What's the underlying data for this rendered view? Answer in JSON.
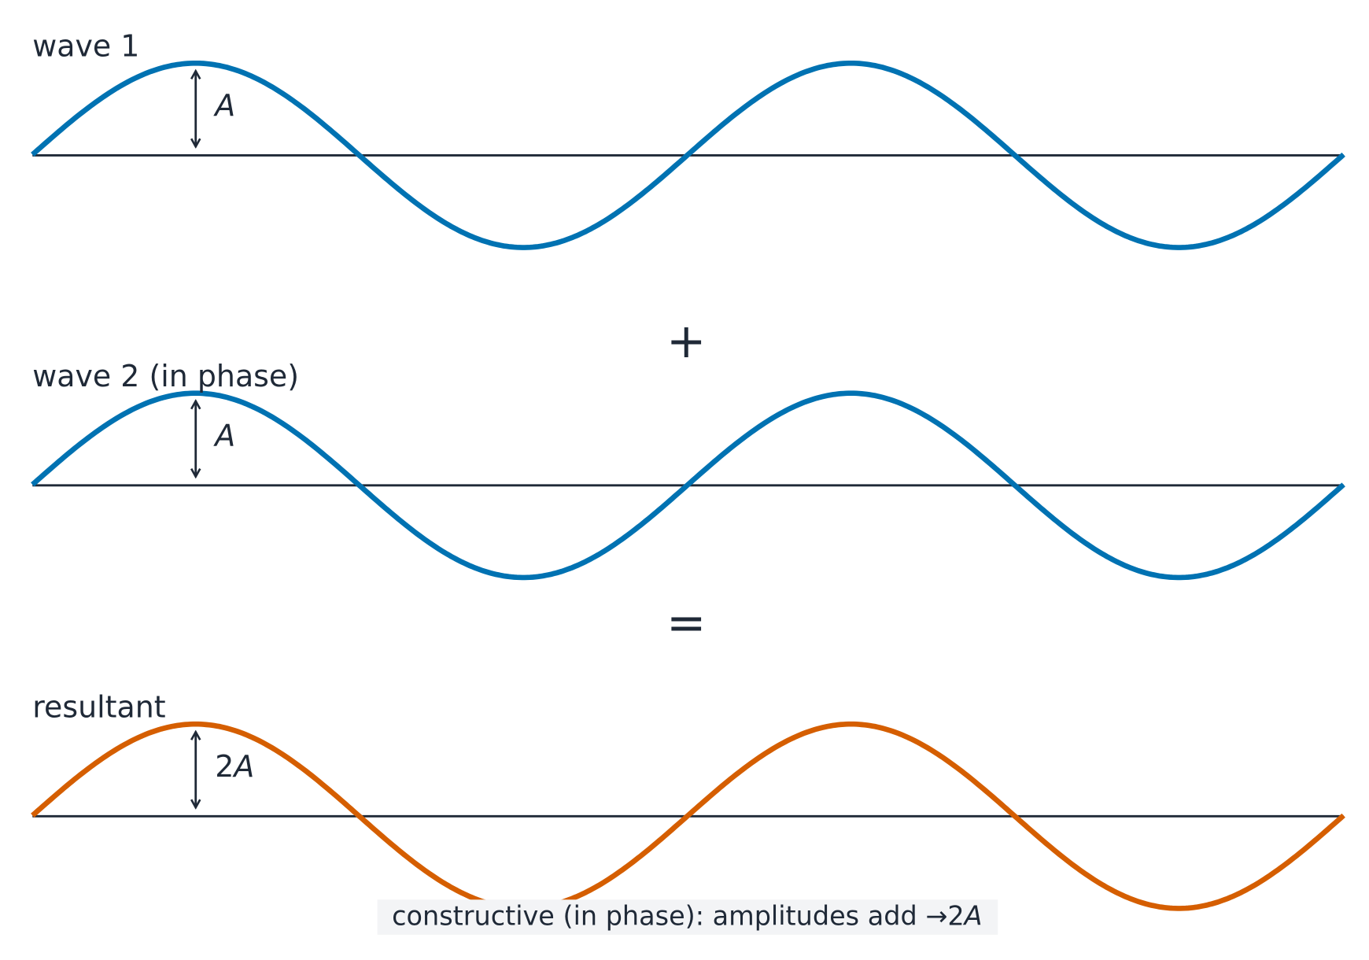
{
  "panels": [
    {
      "label": "wave 1",
      "amplitude": {
        "coefficient": "",
        "symbol": "A"
      }
    },
    {
      "label": "wave 2 (in phase)",
      "amplitude": {
        "coefficient": "",
        "symbol": "A"
      }
    },
    {
      "label": "resultant",
      "amplitude": {
        "coefficient": "2",
        "symbol": "A"
      }
    }
  ],
  "operators": [
    "+",
    "="
  ],
  "caption": {
    "text": "constructive (in phase): amplitudes add →",
    "coefficient": "2",
    "symbol": "A"
  }
}
